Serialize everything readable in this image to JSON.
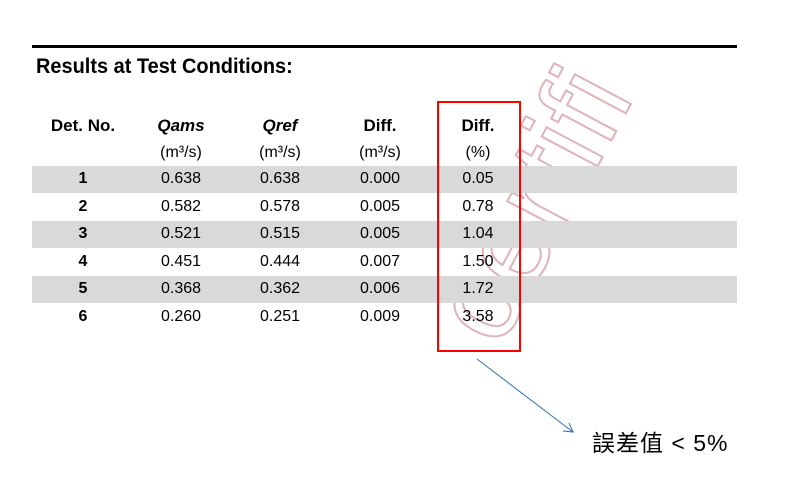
{
  "title": "Results at Test Conditions:",
  "columns": [
    {
      "label": "Det. No.",
      "unit": ""
    },
    {
      "label": "Qams",
      "unit": "(m³/s)"
    },
    {
      "label": "Qref",
      "unit": "(m³/s)"
    },
    {
      "label": "Diff.",
      "unit": "(m³/s)"
    },
    {
      "label": "Diff.",
      "unit": "(%)"
    }
  ],
  "rows": [
    [
      "1",
      "0.638",
      "0.638",
      "0.000",
      "0.05"
    ],
    [
      "2",
      "0.582",
      "0.578",
      "0.005",
      "0.78"
    ],
    [
      "3",
      "0.521",
      "0.515",
      "0.005",
      "1.04"
    ],
    [
      "4",
      "0.451",
      "0.444",
      "0.007",
      "1.50"
    ],
    [
      "5",
      "0.368",
      "0.362",
      "0.006",
      "1.72"
    ],
    [
      "6",
      "0.260",
      "0.251",
      "0.009",
      "3.58"
    ]
  ],
  "annotation": "誤差值 < 5%",
  "watermark": "certifi",
  "colors": {
    "highlight_box": "#ff0000",
    "arrow": "#2e6db4",
    "row_shade": "#d9d9d9",
    "watermark": "#d9a0a8"
  }
}
